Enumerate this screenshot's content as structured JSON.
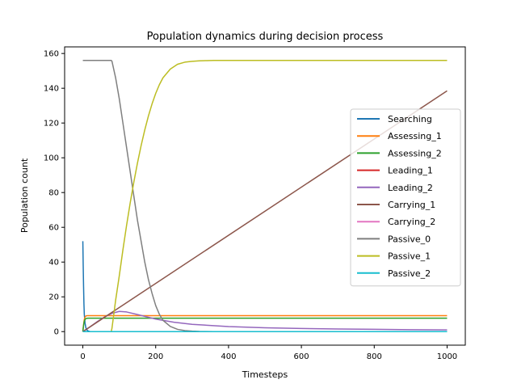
{
  "chart_data": {
    "type": "line",
    "title": "Population dynamics during decision process",
    "xlabel": "Timesteps",
    "ylabel": "Population count",
    "xlim": [
      -50,
      1050
    ],
    "ylim": [
      -7.8,
      163.8
    ],
    "xticks": [
      0,
      200,
      400,
      600,
      800,
      1000
    ],
    "yticks": [
      0,
      20,
      40,
      60,
      80,
      100,
      120,
      140,
      160
    ],
    "grid": false,
    "legend_position": "center-right",
    "series": [
      {
        "name": "Searching",
        "color": "#1f77b4",
        "x": [
          0,
          1,
          2,
          3,
          4,
          6,
          8,
          10,
          15,
          20,
          1000
        ],
        "y": [
          52,
          38,
          26,
          16,
          10,
          5,
          2.5,
          1.2,
          0.3,
          0,
          0
        ]
      },
      {
        "name": "Assessing_1",
        "color": "#ff7f0e",
        "x": [
          0,
          2,
          4,
          6,
          8,
          10,
          14,
          20,
          1000
        ],
        "y": [
          0,
          4,
          7,
          8.3,
          8.9,
          9.1,
          9.2,
          9.2,
          9.2
        ]
      },
      {
        "name": "Assessing_2",
        "color": "#2ca02c",
        "x": [
          0,
          2,
          4,
          6,
          8,
          10,
          14,
          20,
          1000
        ],
        "y": [
          0,
          3.5,
          6,
          7,
          7.4,
          7.6,
          7.7,
          7.7,
          7.7
        ]
      },
      {
        "name": "Leading_1",
        "color": "#d62728",
        "x": [
          0,
          1000
        ],
        "y": [
          0,
          0
        ]
      },
      {
        "name": "Leading_2",
        "color": "#9467bd",
        "x": [
          0,
          20,
          40,
          60,
          80,
          100,
          120,
          150,
          200,
          250,
          300,
          400,
          500,
          600,
          700,
          800,
          900,
          1000
        ],
        "y": [
          0,
          2.8,
          5.8,
          8.5,
          10.5,
          11.6,
          11.3,
          9.8,
          7.2,
          5.4,
          4.2,
          2.9,
          2.2,
          1.8,
          1.5,
          1.3,
          1.1,
          1.0
        ]
      },
      {
        "name": "Carrying_1",
        "color": "#8c564b",
        "x": [
          0,
          1000
        ],
        "y": [
          0,
          138.5
        ]
      },
      {
        "name": "Carrying_2",
        "color": "#e377c2",
        "x": [
          0,
          1000
        ],
        "y": [
          0,
          0
        ]
      },
      {
        "name": "Passive_0",
        "color": "#7f7f7f",
        "x": [
          0,
          78,
          80,
          90,
          100,
          110,
          120,
          130,
          140,
          150,
          160,
          170,
          180,
          190,
          200,
          210,
          220,
          240,
          260,
          280,
          300,
          320,
          360,
          400,
          1000
        ],
        "y": [
          156,
          156,
          155.5,
          146,
          134,
          120,
          106,
          92,
          78,
          64,
          52,
          40,
          30,
          22,
          15,
          10,
          6.5,
          3,
          1.3,
          0.6,
          0.3,
          0.1,
          0,
          0,
          0
        ]
      },
      {
        "name": "Passive_1",
        "color": "#bcbd22",
        "x": [
          0,
          78,
          80,
          90,
          100,
          110,
          120,
          130,
          140,
          150,
          160,
          170,
          180,
          190,
          200,
          210,
          220,
          240,
          260,
          280,
          300,
          320,
          340,
          360,
          400,
          1000
        ],
        "y": [
          0,
          0,
          2,
          18,
          32,
          47,
          61,
          74,
          86,
          97,
          107,
          116,
          124,
          131,
          137,
          142,
          146,
          151,
          153.8,
          155,
          155.5,
          155.8,
          155.9,
          156,
          156,
          156
        ]
      },
      {
        "name": "Passive_2",
        "color": "#17becf",
        "x": [
          0,
          1000
        ],
        "y": [
          0,
          0
        ]
      }
    ]
  }
}
